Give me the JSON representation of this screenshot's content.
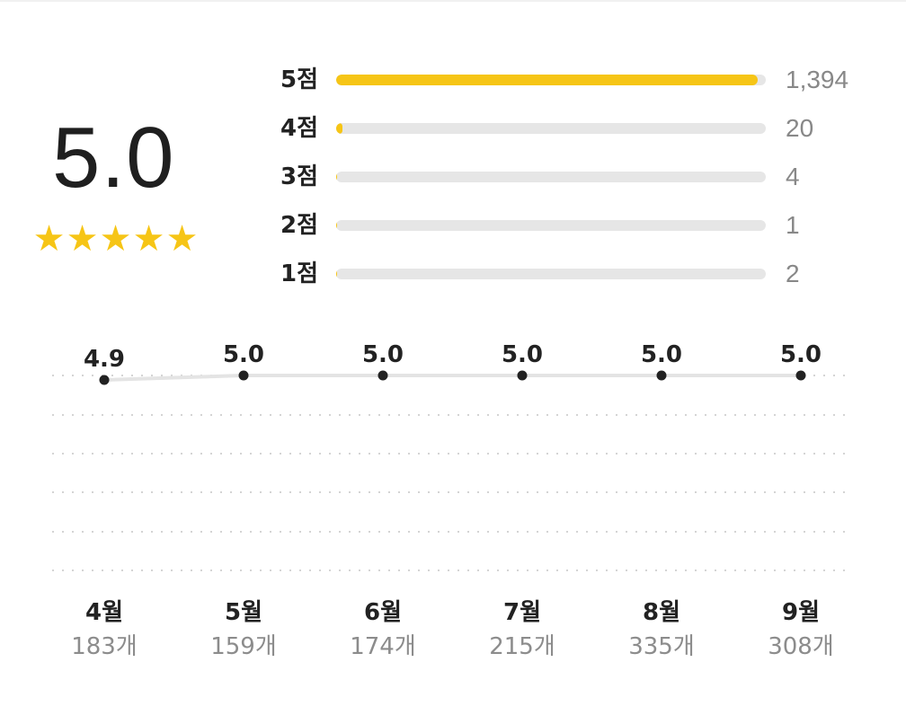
{
  "summary": {
    "average": "5.0",
    "stars": 5,
    "star_color": "#f6c516"
  },
  "chart_data": [
    {
      "type": "bar",
      "orientation": "horizontal",
      "categories": [
        "5점",
        "4점",
        "3점",
        "2점",
        "1점"
      ],
      "values": [
        1394,
        20,
        4,
        1,
        2
      ],
      "value_labels": [
        "1,394",
        "20",
        "4",
        "1",
        "2"
      ],
      "max": 1421,
      "bar_color": "#f6c516",
      "track_color": "#e6e6e6"
    },
    {
      "type": "line",
      "categories": [
        "4월",
        "5월",
        "6월",
        "7월",
        "8월",
        "9월"
      ],
      "values": [
        4.9,
        5.0,
        5.0,
        5.0,
        5.0,
        5.0
      ],
      "value_labels": [
        "4.9",
        "5.0",
        "5.0",
        "5.0",
        "5.0",
        "5.0"
      ],
      "counts": [
        "183개",
        "159개",
        "174개",
        "215개",
        "335개",
        "308개"
      ],
      "grid": "dotted",
      "line_color": "#e4e4e4",
      "point_color": "#222222"
    }
  ]
}
